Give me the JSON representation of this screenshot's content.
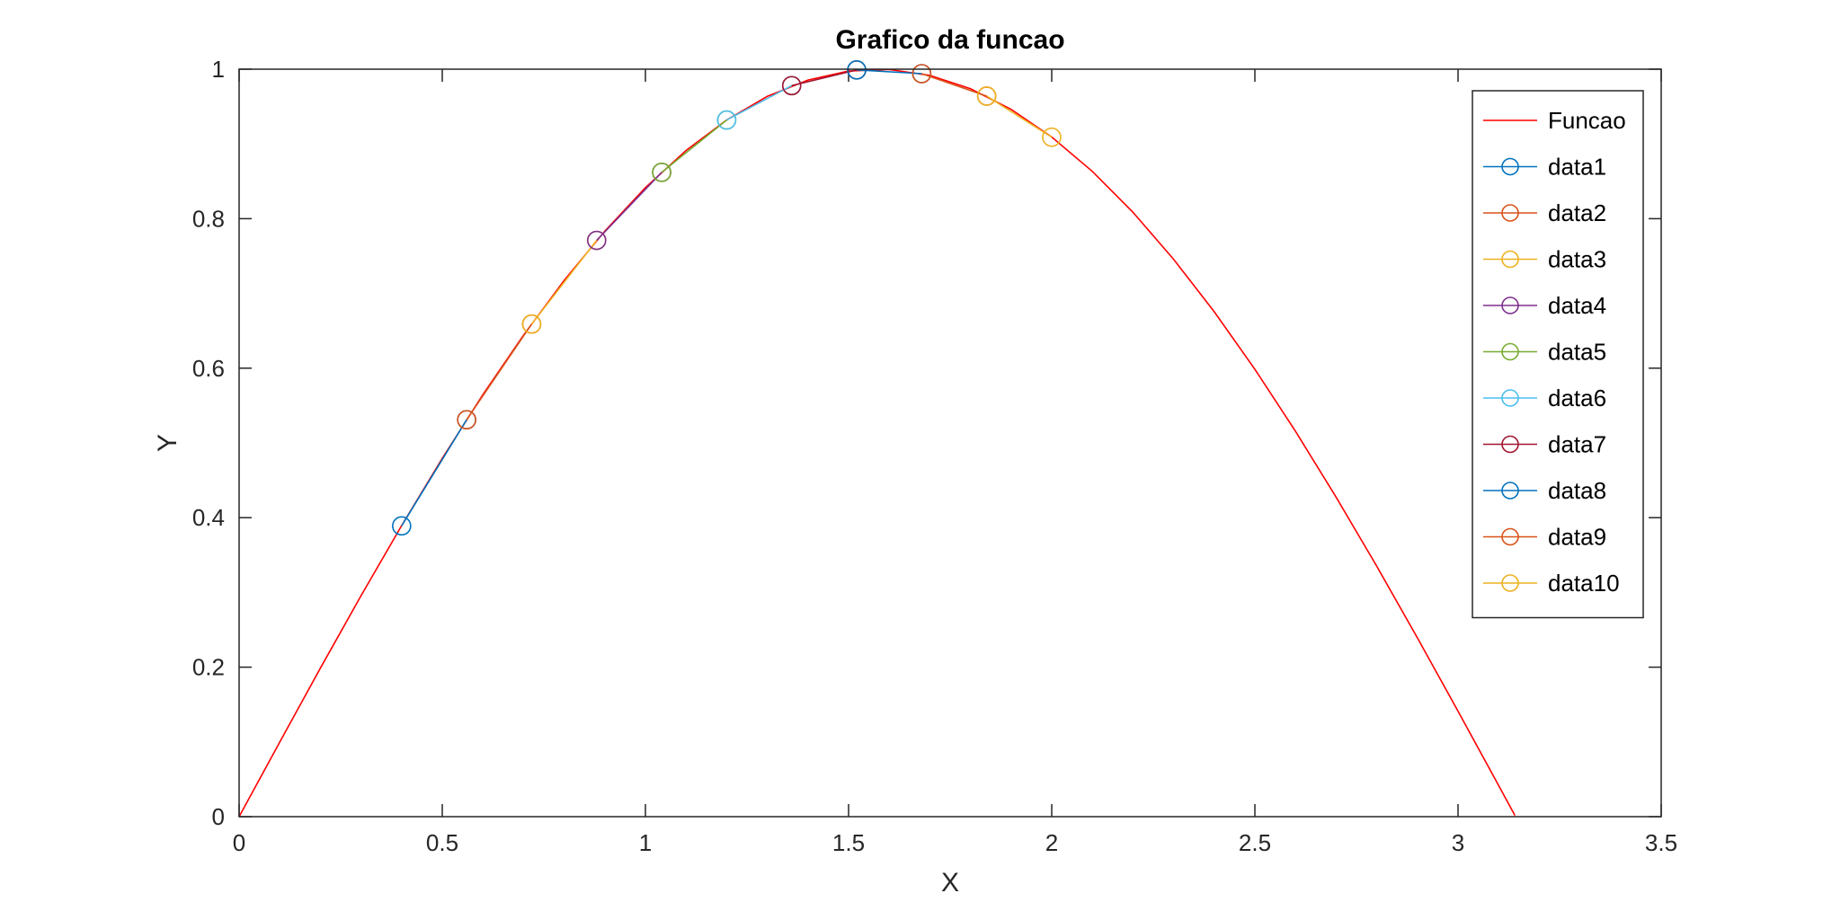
{
  "chart_data": {
    "type": "line",
    "title": "Grafico da funcao",
    "xlabel": "X",
    "ylabel": "Y",
    "xlim": [
      0,
      3.5
    ],
    "ylim": [
      0,
      1
    ],
    "xticks": [
      0,
      0.5,
      1,
      1.5,
      2,
      2.5,
      3,
      3.5
    ],
    "xtick_labels": [
      "0",
      "0.5",
      "1",
      "1.5",
      "2",
      "2.5",
      "3",
      "3.5"
    ],
    "yticks": [
      0,
      0.2,
      0.4,
      0.6,
      0.8,
      1
    ],
    "ytick_labels": [
      "0",
      "0.2",
      "0.4",
      "0.6",
      "0.8",
      "1"
    ],
    "grid": false,
    "legend_position": "top-right",
    "curve": {
      "name": "Funcao",
      "color": "#ff0000",
      "x": [
        0,
        0.1,
        0.2,
        0.3,
        0.4,
        0.5,
        0.6,
        0.7,
        0.8,
        0.9,
        1.0,
        1.1,
        1.2,
        1.3,
        1.4,
        1.5,
        1.6,
        1.7,
        1.8,
        1.9,
        2.0,
        2.1,
        2.2,
        2.3,
        2.4,
        2.5,
        2.6,
        2.7,
        2.8,
        2.9,
        3.0,
        3.1,
        3.14
      ],
      "y": [
        0,
        0.0998,
        0.1987,
        0.2955,
        0.3894,
        0.4794,
        0.5646,
        0.6442,
        0.7174,
        0.7833,
        0.8415,
        0.8912,
        0.932,
        0.9636,
        0.9854,
        0.9975,
        0.9996,
        0.9917,
        0.9738,
        0.9463,
        0.9093,
        0.8632,
        0.8085,
        0.7457,
        0.6755,
        0.5985,
        0.5155,
        0.4274,
        0.335,
        0.2392,
        0.1411,
        0.0416,
        0.0016
      ]
    },
    "series": [
      {
        "name": "data1",
        "color": "#0072bd",
        "x": [
          0.4,
          0.56
        ],
        "y": [
          0.389,
          0.531
        ]
      },
      {
        "name": "data2",
        "color": "#d95319",
        "x": [
          0.56,
          0.72
        ],
        "y": [
          0.531,
          0.659
        ]
      },
      {
        "name": "data3",
        "color": "#edb120",
        "x": [
          0.72,
          0.88
        ],
        "y": [
          0.659,
          0.771
        ]
      },
      {
        "name": "data4",
        "color": "#7e2f8e",
        "x": [
          0.88,
          1.04
        ],
        "y": [
          0.771,
          0.862
        ]
      },
      {
        "name": "data5",
        "color": "#77ac30",
        "x": [
          1.04,
          1.2
        ],
        "y": [
          0.862,
          0.932
        ]
      },
      {
        "name": "data6",
        "color": "#4dbeee",
        "x": [
          1.2,
          1.36
        ],
        "y": [
          0.932,
          0.978
        ]
      },
      {
        "name": "data7",
        "color": "#a2142f",
        "x": [
          1.36,
          1.52
        ],
        "y": [
          0.978,
          0.999
        ]
      },
      {
        "name": "data8",
        "color": "#0072bd",
        "x": [
          1.52,
          1.68
        ],
        "y": [
          0.999,
          0.994
        ]
      },
      {
        "name": "data9",
        "color": "#d95319",
        "x": [
          1.68,
          1.84
        ],
        "y": [
          0.994,
          0.964
        ]
      },
      {
        "name": "data10",
        "color": "#edb120",
        "x": [
          1.84,
          2.0
        ],
        "y": [
          0.964,
          0.909
        ]
      }
    ]
  }
}
